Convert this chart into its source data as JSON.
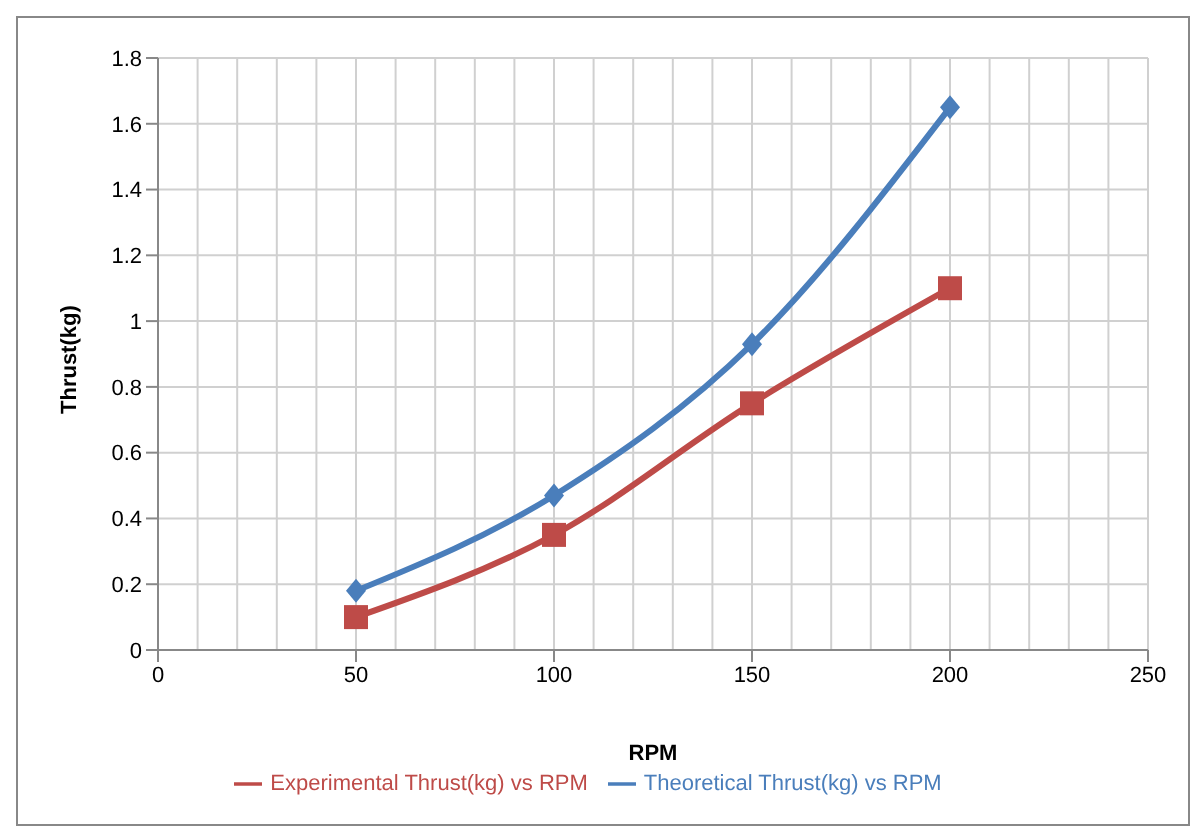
{
  "chart_data": {
    "type": "line",
    "xlabel": "RPM",
    "ylabel": "Thrust(kg)",
    "xlim": [
      0,
      250
    ],
    "xticks": [
      0,
      50,
      100,
      150,
      200,
      250
    ],
    "ylim": [
      0,
      1.8
    ],
    "yticks": [
      0,
      0.2,
      0.4,
      0.6,
      0.8,
      1,
      1.2,
      1.4,
      1.6,
      1.8
    ],
    "grid": true,
    "legend": "bottom",
    "line_style": "solid",
    "x": [
      50,
      100,
      150,
      200
    ],
    "series": [
      {
        "name": "Theoretical Thrust(kg) vs RPM",
        "color": "#4a7ebb",
        "marker": "diamond",
        "values": [
          0.18,
          0.47,
          0.93,
          1.65
        ]
      },
      {
        "name": "Experimental Thrust(kg) vs RPM",
        "color": "#be4b48",
        "marker": "square",
        "values": [
          0.1,
          0.35,
          0.75,
          1.1
        ]
      }
    ]
  }
}
